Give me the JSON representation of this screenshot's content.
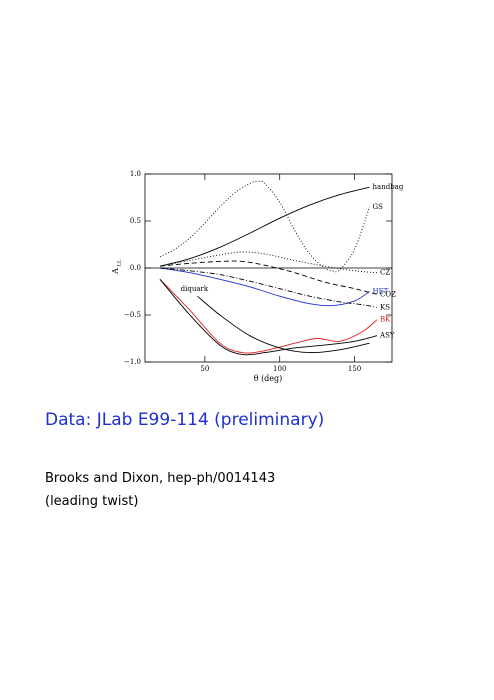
{
  "chart_data": {
    "type": "line",
    "x_label": "θ (deg)",
    "y_label": "A",
    "y_label_subscript": "LL",
    "xlim": [
      10,
      175
    ],
    "ylim": [
      -1,
      1
    ],
    "xticks": [
      50,
      100,
      150
    ],
    "yticks": [
      {
        "value": -1,
        "label": "−1.0"
      },
      {
        "value": -0.5,
        "label": "−0.5"
      },
      {
        "value": 0,
        "label": "0.0"
      },
      {
        "value": 0.5,
        "label": "0.5"
      },
      {
        "value": 1,
        "label": "1.0"
      }
    ],
    "series": [
      {
        "name": "handbag",
        "color": "#000000",
        "dash": "solid",
        "x": [
          20,
          40,
          60,
          80,
          100,
          120,
          140,
          160
        ],
        "values": [
          0.02,
          0.1,
          0.22,
          0.37,
          0.53,
          0.67,
          0.78,
          0.86
        ]
      },
      {
        "name": "GS",
        "color": "#000000",
        "dash": "dotted",
        "x": [
          20,
          30,
          40,
          50,
          60,
          70,
          80,
          85,
          90,
          100,
          110,
          120,
          130,
          135,
          140,
          150,
          160
        ],
        "values": [
          0.12,
          0.2,
          0.32,
          0.48,
          0.65,
          0.8,
          0.9,
          0.92,
          0.9,
          0.7,
          0.4,
          0.15,
          0.0,
          -0.03,
          -0.02,
          0.2,
          0.65
        ]
      },
      {
        "name": "CZ",
        "color": "#000000",
        "dash": "dotted",
        "x": [
          20,
          40,
          60,
          75,
          90,
          110,
          130,
          150,
          165
        ],
        "values": [
          0.02,
          0.08,
          0.14,
          0.17,
          0.15,
          0.08,
          0.02,
          -0.03,
          -0.05
        ]
      },
      {
        "name": "HET",
        "color": "#1f2fd0",
        "dash": "solid",
        "x": [
          20,
          40,
          60,
          80,
          100,
          120,
          135,
          150,
          160
        ],
        "values": [
          0.0,
          -0.05,
          -0.12,
          -0.2,
          -0.3,
          -0.38,
          -0.4,
          -0.35,
          -0.25
        ]
      },
      {
        "name": "COZ",
        "color": "#000000",
        "dash": "dashed",
        "x": [
          20,
          40,
          60,
          75,
          90,
          110,
          130,
          150,
          165
        ],
        "values": [
          0.02,
          0.05,
          0.07,
          0.07,
          0.03,
          -0.05,
          -0.15,
          -0.22,
          -0.28
        ]
      },
      {
        "name": "KS",
        "color": "#000000",
        "dash": "dashdot",
        "x": [
          20,
          40,
          60,
          80,
          100,
          120,
          140,
          155,
          165
        ],
        "values": [
          0.0,
          -0.03,
          -0.07,
          -0.14,
          -0.22,
          -0.3,
          -0.36,
          -0.39,
          -0.42
        ]
      },
      {
        "name": "BK",
        "color": "#e02020",
        "dash": "solid",
        "x": [
          20,
          40,
          60,
          75,
          90,
          110,
          125,
          140,
          155,
          165
        ],
        "values": [
          -0.12,
          -0.45,
          -0.8,
          -0.9,
          -0.88,
          -0.8,
          -0.75,
          -0.78,
          -0.68,
          -0.55
        ]
      },
      {
        "name": "ASY",
        "color": "#000000",
        "dash": "solid",
        "x": [
          20,
          40,
          60,
          75,
          90,
          110,
          130,
          150,
          165
        ],
        "values": [
          -0.12,
          -0.5,
          -0.82,
          -0.92,
          -0.9,
          -0.85,
          -0.82,
          -0.78,
          -0.72
        ]
      },
      {
        "name": "diquark",
        "color": "#000000",
        "dash": "solid",
        "label_position": "start",
        "x": [
          45,
          60,
          80,
          100,
          120,
          140,
          160
        ],
        "values": [
          -0.3,
          -0.5,
          -0.72,
          -0.85,
          -0.9,
          -0.87,
          -0.8
        ]
      }
    ]
  },
  "caption": {
    "data_note": "Data: JLab E99-114 (preliminary)",
    "reference": "Brooks and Dixon, hep-ph/0014143",
    "reference_note": "(leading twist)"
  }
}
